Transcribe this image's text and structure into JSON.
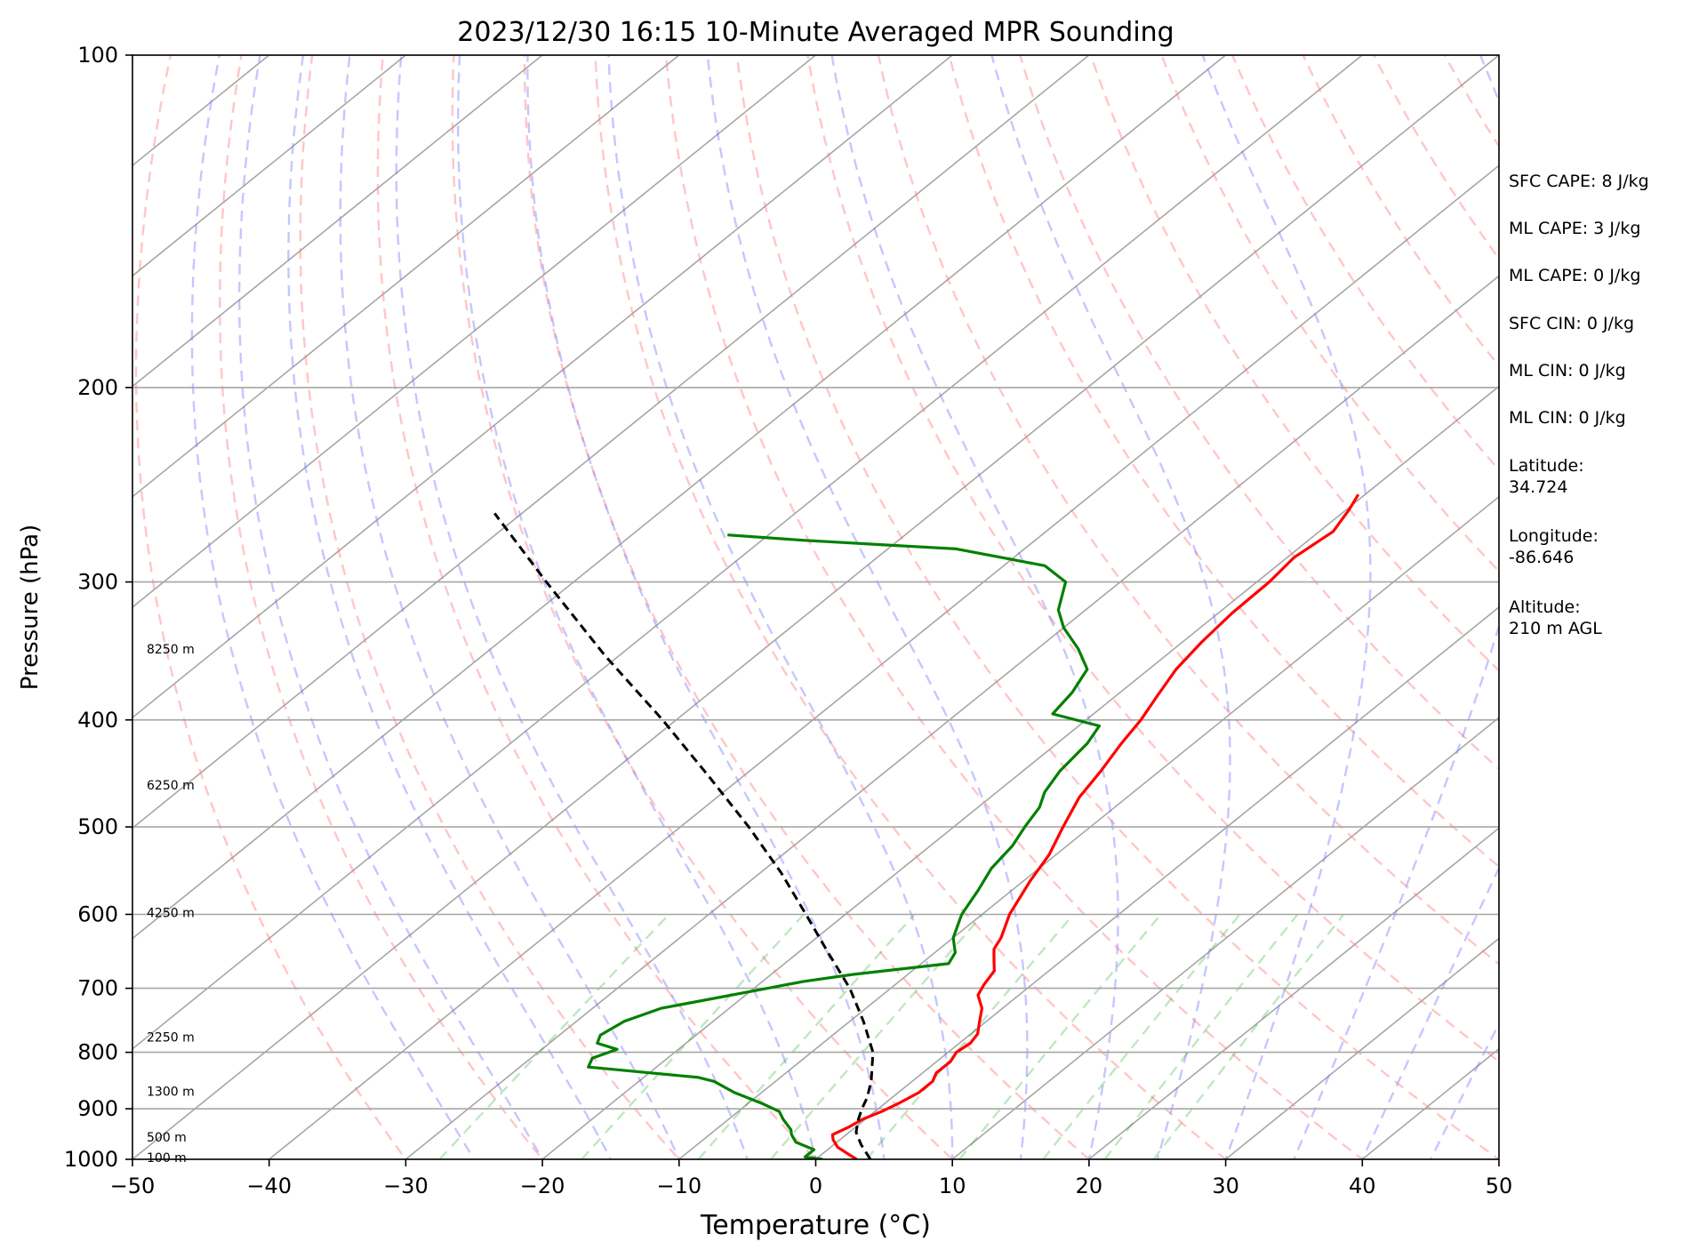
{
  "chart_data": {
    "type": "line",
    "subtype": "skew-t log-p sounding",
    "title": "2023/12/30 16:15 10-Minute Averaged MPR Sounding",
    "xlabel": "Temperature (°C)",
    "ylabel": "Pressure (hPa)",
    "xlim": [
      -50,
      50
    ],
    "ylim": [
      1000,
      100
    ],
    "yscale": "log",
    "x_ticks": [
      -50,
      -40,
      -30,
      -20,
      -10,
      0,
      10,
      20,
      30,
      40,
      50
    ],
    "x_tick_labels": [
      "−50",
      "−40",
      "−30",
      "−20",
      "−10",
      "0",
      "10",
      "20",
      "30",
      "40",
      "50"
    ],
    "y_ticks": [
      1000,
      900,
      800,
      700,
      600,
      500,
      400,
      300,
      200,
      100
    ],
    "y_tick_labels": [
      "1000",
      "900",
      "800",
      "700",
      "600",
      "500",
      "400",
      "300",
      "200",
      "100"
    ],
    "height_labels": [
      {
        "p": 996,
        "text": "100 m"
      },
      {
        "p": 955,
        "text": "500 m"
      },
      {
        "p": 868,
        "text": "1300 m"
      },
      {
        "p": 775,
        "text": "2250 m"
      },
      {
        "p": 598,
        "text": "4250 m"
      },
      {
        "p": 458,
        "text": "6250 m"
      },
      {
        "p": 345,
        "text": "8250 m"
      }
    ],
    "series": [
      {
        "role": "temperature",
        "color": "#ff0000",
        "points": [
          [
            1000,
            3.0
          ],
          [
            990,
            2.0
          ],
          [
            975,
            0.5
          ],
          [
            960,
            -0.5
          ],
          [
            950,
            -1.0
          ],
          [
            935,
            -0.5
          ],
          [
            920,
            -0.2
          ],
          [
            905,
            0.5
          ],
          [
            890,
            1.0
          ],
          [
            870,
            1.5
          ],
          [
            850,
            1.5
          ],
          [
            835,
            1.0
          ],
          [
            815,
            1.0
          ],
          [
            800,
            0.6
          ],
          [
            785,
            0.8
          ],
          [
            770,
            0.5
          ],
          [
            750,
            -0.5
          ],
          [
            730,
            -1.5
          ],
          [
            710,
            -3.0
          ],
          [
            695,
            -3.5
          ],
          [
            675,
            -4.0
          ],
          [
            660,
            -5.0
          ],
          [
            645,
            -6.0
          ],
          [
            630,
            -6.5
          ],
          [
            600,
            -8.0
          ],
          [
            560,
            -9.5
          ],
          [
            530,
            -10.5
          ],
          [
            500,
            -12.0
          ],
          [
            470,
            -13.5
          ],
          [
            445,
            -14.3
          ],
          [
            420,
            -15.3
          ],
          [
            400,
            -16.0
          ],
          [
            380,
            -17.0
          ],
          [
            360,
            -18.0
          ],
          [
            340,
            -18.6
          ],
          [
            320,
            -19.0
          ],
          [
            300,
            -19.1
          ],
          [
            285,
            -19.5
          ],
          [
            270,
            -19.0
          ],
          [
            258,
            -19.8
          ],
          [
            250,
            -20.5
          ]
        ]
      },
      {
        "role": "dewpoint",
        "color": "#008000",
        "points": [
          [
            1000,
            0.5
          ],
          [
            995,
            -1.0
          ],
          [
            980,
            -1.0
          ],
          [
            965,
            -3.0
          ],
          [
            950,
            -4.0
          ],
          [
            940,
            -4.5
          ],
          [
            920,
            -6.0
          ],
          [
            905,
            -7.0
          ],
          [
            890,
            -9.0
          ],
          [
            870,
            -12.0
          ],
          [
            850,
            -14.5
          ],
          [
            843,
            -16.0
          ],
          [
            835,
            -20.0
          ],
          [
            825,
            -25.0
          ],
          [
            810,
            -25.5
          ],
          [
            795,
            -24.5
          ],
          [
            785,
            -26.5
          ],
          [
            772,
            -27.0
          ],
          [
            750,
            -26.5
          ],
          [
            730,
            -25.0
          ],
          [
            700,
            -19.0
          ],
          [
            690,
            -17.0
          ],
          [
            680,
            -14.0
          ],
          [
            665,
            -8.0
          ],
          [
            650,
            -8.5
          ],
          [
            630,
            -10.0
          ],
          [
            600,
            -11.5
          ],
          [
            570,
            -12.5
          ],
          [
            545,
            -13.5
          ],
          [
            520,
            -14.0
          ],
          [
            500,
            -14.8
          ],
          [
            480,
            -15.5
          ],
          [
            465,
            -16.5
          ],
          [
            445,
            -17.3
          ],
          [
            420,
            -17.8
          ],
          [
            405,
            -18.5
          ],
          [
            395,
            -23.0
          ],
          [
            378,
            -23.5
          ],
          [
            360,
            -24.5
          ],
          [
            345,
            -27.0
          ],
          [
            330,
            -30.0
          ],
          [
            318,
            -32.0
          ],
          [
            300,
            -34.0
          ],
          [
            290,
            -37.0
          ],
          [
            280,
            -45.0
          ],
          [
            275,
            -57.0
          ],
          [
            272,
            -63.0
          ]
        ]
      },
      {
        "role": "parcel",
        "color": "#000000",
        "style": "dashed",
        "points": [
          [
            1000,
            4.0
          ],
          [
            970,
            2.0
          ],
          [
            945,
            0.5
          ],
          [
            920,
            -0.5
          ],
          [
            900,
            -1.2
          ],
          [
            880,
            -1.8
          ],
          [
            850,
            -3.0
          ],
          [
            800,
            -5.5
          ],
          [
            750,
            -9.0
          ],
          [
            700,
            -13.0
          ],
          [
            650,
            -17.8
          ],
          [
            600,
            -22.9
          ],
          [
            550,
            -28.5
          ],
          [
            500,
            -35.0
          ],
          [
            450,
            -42.5
          ],
          [
            400,
            -51.0
          ],
          [
            350,
            -61.0
          ],
          [
            300,
            -72.0
          ],
          [
            260,
            -82.0
          ]
        ]
      }
    ],
    "annotations": [
      "SFC CAPE: 8 J/kg",
      "ML CAPE: 3 J/kg",
      "ML CAPE: 0 J/kg",
      "SFC CIN: 0 J/kg",
      "ML CIN: 0 J/kg",
      "ML CIN: 0 J/kg",
      "Latitude:\n34.724",
      "Longitude:\n-86.646",
      "Altitude:\n210 m AGL"
    ],
    "grid": true
  }
}
